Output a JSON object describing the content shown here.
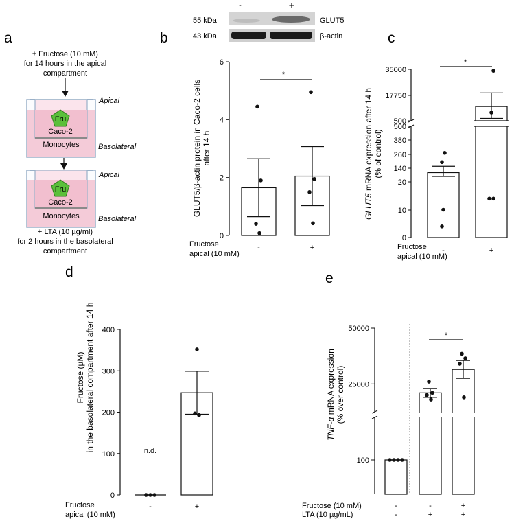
{
  "panels": {
    "a": {
      "label": "a",
      "top_text": [
        "± Fructose (10 mM)",
        "for 14 hours in the apical",
        "compartment"
      ],
      "apical": "Apical",
      "basolateral": "Basolateral",
      "fru": "Fru",
      "caco": "Caco-2",
      "mono": "Monocytes",
      "bottom_text": [
        "+ LTA (10 µg/ml)",
        "for 2 hours in the basolateral",
        "compartment"
      ],
      "colors": {
        "medium": "#f2c6d4",
        "pentagon": "#5bbf3a",
        "well": "#9ab0c8"
      }
    },
    "b": {
      "label": "b",
      "blot": {
        "lanes": [
          "-",
          "+"
        ],
        "rows": [
          {
            "kda": "55 kDa",
            "protein": "GLUT5"
          },
          {
            "kda": "43 kDa",
            "protein": "β-actin"
          }
        ]
      },
      "yaxis_line1": "GLUT5/β-actin protein in Caco-2 cells",
      "yaxis_line2": "after 14 h",
      "cond_label1": "Fructose",
      "cond_label2": "apical (10 mM)",
      "sig": "*"
    },
    "c": {
      "label": "c",
      "yaxis_italic": "GLUT5",
      "yaxis_rest": " mRNA expression after 14 h",
      "yaxis_line2": "(% of control)",
      "cond_label1": "Fructose",
      "cond_label2": "apical (10 mM)",
      "sig": "*"
    },
    "d": {
      "label": "d",
      "yaxis_line1": "Fructose (µM)",
      "yaxis_line2": "in the basolateral compartment after 14 h",
      "cond_label1": "Fructose",
      "cond_label2": "apical (10 mM)",
      "nd": "n.d."
    },
    "e": {
      "label": "e",
      "yaxis_italic": "TNF-α",
      "yaxis_rest": " mRNA expression",
      "yaxis_line2": "(% over control)",
      "row1_label": "Fructose (10 mM)",
      "row2_label": "LTA (10 µg/mL)",
      "sig": "*"
    }
  },
  "chart_data": [
    {
      "id": "b",
      "type": "bar",
      "categories": [
        "-",
        "+"
      ],
      "values": [
        1.65,
        2.05
      ],
      "errors": [
        1.0,
        1.02
      ],
      "points": [
        [
          4.45,
          1.9,
          0.4,
          0.08
        ],
        [
          4.95,
          1.95,
          1.5,
          0.42
        ]
      ],
      "ylim": [
        0,
        6
      ],
      "yticks": [
        0,
        2,
        4,
        6
      ],
      "ylabel": "GLUT5/β-actin protein in Caco-2 cells after 14 h"
    },
    {
      "id": "c",
      "type": "bar",
      "categories": [
        "-",
        "+"
      ],
      "values": [
        100,
        10100
      ],
      "errors_low": [
        33,
        8000
      ],
      "errors_high": [
        55,
        9100
      ],
      "points": [
        [
          270,
          190,
          10,
          4
        ],
        [
          34000,
          6000,
          14,
          14
        ]
      ],
      "yscale": "broken",
      "segments": [
        [
          0,
          20
        ],
        [
          20,
          500
        ],
        [
          500,
          35000
        ]
      ],
      "yticks": [
        "0",
        "10",
        "20",
        "140",
        "260",
        "380",
        "500",
        "500",
        "17750",
        "35000"
      ],
      "ylabel": "GLUT5 mRNA expression after 14 h (% of control)"
    },
    {
      "id": "d",
      "type": "bar",
      "categories": [
        "-",
        "+"
      ],
      "values": [
        0,
        247
      ],
      "errors": [
        0,
        52
      ],
      "points": [
        [
          0,
          0,
          0
        ],
        [
          352,
          197,
          193
        ]
      ],
      "ylim": [
        0,
        400
      ],
      "yticks": [
        0,
        100,
        200,
        300,
        400
      ],
      "ylabel": "Fructose (µM) in the basolateral compartment after 14 h"
    },
    {
      "id": "e",
      "type": "bar",
      "categories": [
        {
          "fructose": "-",
          "lta": "-"
        },
        {
          "fructose": "-",
          "lta": "+"
        },
        {
          "fructose": "+",
          "lta": "+"
        }
      ],
      "values": [
        100,
        21000,
        31500
      ],
      "errors": [
        0,
        2000,
        4000
      ],
      "points": [
        [
          100,
          100,
          100,
          100
        ],
        [
          26000,
          21000,
          20000,
          18000
        ],
        [
          38500,
          36500,
          34000,
          19000
        ]
      ],
      "yscale": "broken",
      "yticks": [
        100,
        25000,
        50000
      ],
      "ylabel": "TNF-α mRNA expression (% over control)"
    }
  ]
}
